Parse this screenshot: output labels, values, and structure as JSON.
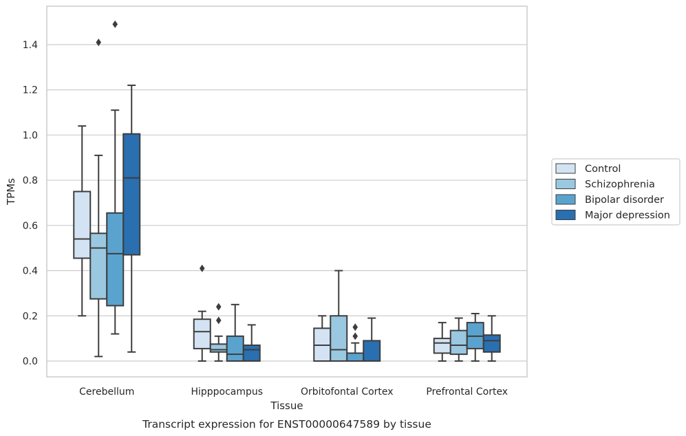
{
  "chart_data": {
    "type": "box",
    "caption": "Transcript expression for ENST00000647589 by tissue",
    "xlabel": "Tissue",
    "ylabel": "TPMs",
    "ylim": [
      -0.07,
      1.57
    ],
    "yticks": [
      0.0,
      0.2,
      0.4,
      0.6,
      0.8,
      1.0,
      1.2,
      1.4
    ],
    "ytick_labels": [
      "0.0",
      "0.2",
      "0.4",
      "0.6",
      "0.8",
      "1.0",
      "1.2",
      "1.4"
    ],
    "grid": "horizontal",
    "legend_position": "right",
    "categories": [
      "Cerebellum",
      "Hipppocampus",
      "Orbitofontal Cortex",
      "Prefrontal Cortex"
    ],
    "series": [
      {
        "name": "Control",
        "color": "#d3e3f3",
        "boxes": [
          {
            "whislo": 0.2,
            "q1": 0.455,
            "med": 0.54,
            "q3": 0.75,
            "whishi": 1.04,
            "fliers": []
          },
          {
            "whislo": 0.0,
            "q1": 0.055,
            "med": 0.13,
            "q3": 0.185,
            "whishi": 0.22,
            "fliers": [
              0.41
            ]
          },
          {
            "whislo": 0.0,
            "q1": 0.0,
            "med": 0.07,
            "q3": 0.145,
            "whishi": 0.2,
            "fliers": []
          },
          {
            "whislo": 0.0,
            "q1": 0.035,
            "med": 0.08,
            "q3": 0.1,
            "whishi": 0.17,
            "fliers": []
          }
        ]
      },
      {
        "name": "Schizophrenia",
        "color": "#9ac8e0",
        "boxes": [
          {
            "whislo": 0.02,
            "q1": 0.275,
            "med": 0.5,
            "q3": 0.565,
            "whishi": 0.91,
            "fliers": [
              1.41
            ]
          },
          {
            "whislo": 0.0,
            "q1": 0.04,
            "med": 0.05,
            "q3": 0.075,
            "whishi": 0.11,
            "fliers": [
              0.18,
              0.24
            ]
          },
          {
            "whislo": 0.0,
            "q1": 0.0,
            "med": 0.05,
            "q3": 0.2,
            "whishi": 0.4,
            "fliers": []
          },
          {
            "whislo": 0.0,
            "q1": 0.03,
            "med": 0.07,
            "q3": 0.135,
            "whishi": 0.19,
            "fliers": []
          }
        ]
      },
      {
        "name": "Bipolar disorder",
        "color": "#5ba3cf",
        "boxes": [
          {
            "whislo": 0.12,
            "q1": 0.245,
            "med": 0.475,
            "q3": 0.655,
            "whishi": 1.11,
            "fliers": [
              1.49
            ]
          },
          {
            "whislo": 0.0,
            "q1": 0.0,
            "med": 0.03,
            "q3": 0.11,
            "whishi": 0.25,
            "fliers": []
          },
          {
            "whislo": 0.0,
            "q1": 0.0,
            "med": 0.0,
            "q3": 0.035,
            "whishi": 0.08,
            "fliers": [
              0.11,
              0.15
            ]
          },
          {
            "whislo": 0.0,
            "q1": 0.055,
            "med": 0.11,
            "q3": 0.17,
            "whishi": 0.21,
            "fliers": []
          }
        ]
      },
      {
        "name": "Major depression",
        "color": "#2a6fb0",
        "boxes": [
          {
            "whislo": 0.04,
            "q1": 0.47,
            "med": 0.81,
            "q3": 1.005,
            "whishi": 1.22,
            "fliers": []
          },
          {
            "whislo": 0.0,
            "q1": 0.0,
            "med": 0.05,
            "q3": 0.07,
            "whishi": 0.16,
            "fliers": []
          },
          {
            "whislo": 0.0,
            "q1": 0.0,
            "med": 0.0,
            "q3": 0.09,
            "whishi": 0.19,
            "fliers": []
          },
          {
            "whislo": 0.0,
            "q1": 0.04,
            "med": 0.09,
            "q3": 0.115,
            "whishi": 0.2,
            "fliers": []
          }
        ]
      }
    ],
    "colors": {
      "grid": "#cccccc",
      "frame": "#cccccc",
      "line": "#3d3d3d",
      "text": "#262626"
    }
  }
}
